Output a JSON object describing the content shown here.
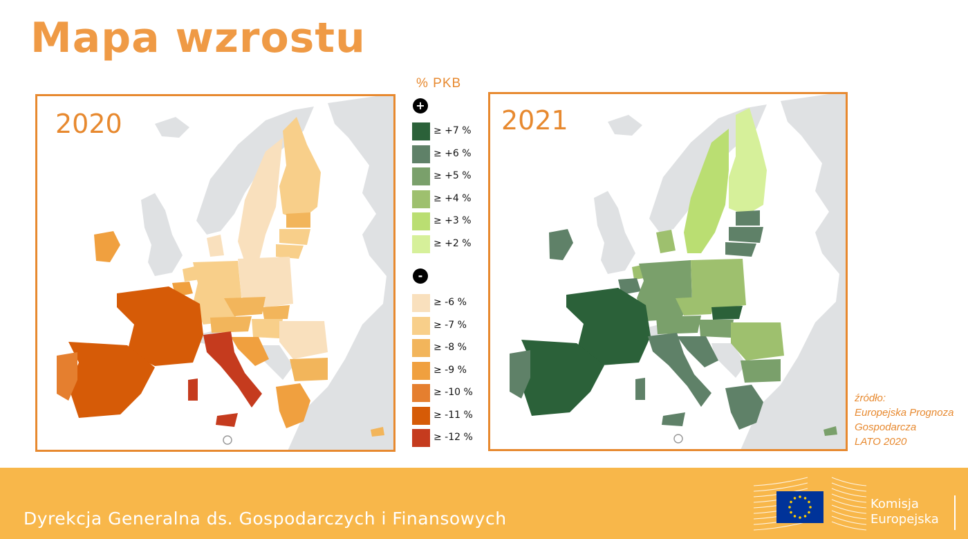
{
  "title": "Mapa wzrostu",
  "maps": [
    {
      "year": "2020"
    },
    {
      "year": "2021"
    }
  ],
  "legend": {
    "title": "% PKB",
    "positive_sign": "+",
    "negative_sign": "-",
    "positive": [
      {
        "label": "≥ +7 %",
        "color": "#2b6139"
      },
      {
        "label": "≥ +6 %",
        "color": "#5f8168"
      },
      {
        "label": "≥ +5 %",
        "color": "#7aa06b"
      },
      {
        "label": "≥ +4 %",
        "color": "#9ec06e"
      },
      {
        "label": "≥ +3 %",
        "color": "#bade72"
      },
      {
        "label": "≥ +2 %",
        "color": "#d6f09a"
      }
    ],
    "negative": [
      {
        "label": "≥ -6 %",
        "color": "#f9e0bd"
      },
      {
        "label": "≥ -7 %",
        "color": "#f8cf8a"
      },
      {
        "label": "≥ -8 %",
        "color": "#f2b55b"
      },
      {
        "label": "≥ -9 %",
        "color": "#f0a03f"
      },
      {
        "label": "≥ -10 %",
        "color": "#e57f2f"
      },
      {
        "label": "≥ -11 %",
        "color": "#d65b07"
      },
      {
        "label": "≥ -12 %",
        "color": "#c53b1e"
      }
    ]
  },
  "source": {
    "line1": "źródło:",
    "line2": "Europejska Prognoza",
    "line3": "Gospodarcza",
    "line4": "LATO 2020"
  },
  "footer": {
    "text": "Dyrekcja Generalna ds. Gospodarczych i Finansowych",
    "logo_line1": "Komisja",
    "logo_line2": "Europejska"
  },
  "colors": {
    "accent": "#e7892f",
    "footer_bg": "#f8b74a",
    "non_eu": "#dfe1e3"
  }
}
